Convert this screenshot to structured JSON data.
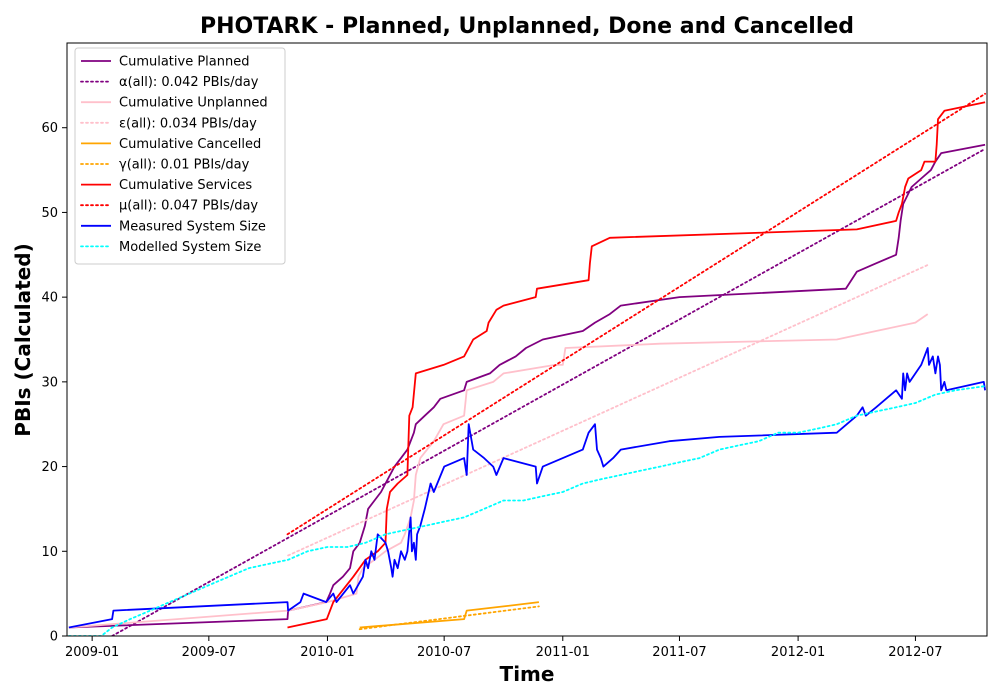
{
  "chart_data": {
    "type": "line",
    "title": "PHOTARK - Planned, Unplanned, Done  and Cancelled",
    "xlabel": "Time",
    "ylabel": "PBIs (Calculated)",
    "xlim": [
      "2008-11-23",
      "2012-10-20"
    ],
    "ylim": [
      0,
      70
    ],
    "x_ticks": [
      "2009-01",
      "2009-07",
      "2010-01",
      "2010-07",
      "2011-01",
      "2011-07",
      "2012-01",
      "2012-07"
    ],
    "y_ticks": [
      0,
      10,
      20,
      30,
      40,
      50,
      60
    ],
    "grid": false,
    "legend_position": "top-left",
    "series": [
      {
        "name": "Cumulative Planned",
        "color": "#800080",
        "style": "solid",
        "points": [
          [
            "2008-11-26",
            1
          ],
          [
            "2009-10-31",
            2
          ],
          [
            "2009-11-01",
            3
          ],
          [
            "2009-12-30",
            4
          ],
          [
            "2010-01-05",
            5
          ],
          [
            "2010-01-10",
            6
          ],
          [
            "2010-01-25",
            7
          ],
          [
            "2010-02-05",
            8
          ],
          [
            "2010-02-10",
            10
          ],
          [
            "2010-02-20",
            11
          ],
          [
            "2010-02-28",
            13
          ],
          [
            "2010-03-05",
            15
          ],
          [
            "2010-03-15",
            16
          ],
          [
            "2010-03-25",
            17
          ],
          [
            "2010-04-01",
            18
          ],
          [
            "2010-04-15",
            20
          ],
          [
            "2010-04-25",
            21
          ],
          [
            "2010-05-05",
            22
          ],
          [
            "2010-05-15",
            24
          ],
          [
            "2010-05-18",
            25
          ],
          [
            "2010-06-01",
            26
          ],
          [
            "2010-06-15",
            27
          ],
          [
            "2010-06-25",
            28
          ],
          [
            "2010-08-01",
            29
          ],
          [
            "2010-08-05",
            30
          ],
          [
            "2010-09-10",
            31
          ],
          [
            "2010-09-25",
            32
          ],
          [
            "2010-10-20",
            33
          ],
          [
            "2010-11-05",
            34
          ],
          [
            "2010-12-01",
            35
          ],
          [
            "2011-02-01",
            36
          ],
          [
            "2011-02-20",
            37
          ],
          [
            "2011-03-15",
            38
          ],
          [
            "2011-04-01",
            39
          ],
          [
            "2011-07-01",
            40
          ],
          [
            "2012-03-15",
            41
          ],
          [
            "2012-04-01",
            43
          ],
          [
            "2012-05-01",
            44
          ],
          [
            "2012-06-01",
            45
          ],
          [
            "2012-06-05",
            47
          ],
          [
            "2012-06-08",
            49
          ],
          [
            "2012-06-12",
            51
          ],
          [
            "2012-06-25",
            53
          ],
          [
            "2012-07-10",
            54
          ],
          [
            "2012-07-25",
            55
          ],
          [
            "2012-08-01",
            56
          ],
          [
            "2012-08-10",
            57
          ],
          [
            "2012-10-17",
            58
          ]
        ]
      },
      {
        "name": "α(all): 0.042 PBIs/day",
        "color": "#800080",
        "style": "dotted",
        "points": [
          [
            "2009-02-01",
            0
          ],
          [
            "2012-10-17",
            57.5
          ]
        ]
      },
      {
        "name": "Cumulative Unplanned",
        "color": "#ffc0cb",
        "style": "solid",
        "points": [
          [
            "2008-11-26",
            1
          ],
          [
            "2009-11-01",
            3
          ],
          [
            "2010-01-01",
            4
          ],
          [
            "2010-02-15",
            5
          ],
          [
            "2010-02-18",
            7
          ],
          [
            "2010-02-25",
            8
          ],
          [
            "2010-03-15",
            9
          ],
          [
            "2010-04-01",
            10
          ],
          [
            "2010-04-25",
            11
          ],
          [
            "2010-05-01",
            12
          ],
          [
            "2010-05-10",
            14
          ],
          [
            "2010-05-15",
            16
          ],
          [
            "2010-05-18",
            19
          ],
          [
            "2010-05-25",
            21
          ],
          [
            "2010-06-15",
            23
          ],
          [
            "2010-06-30",
            25
          ],
          [
            "2010-08-01",
            26
          ],
          [
            "2010-08-05",
            29
          ],
          [
            "2010-09-15",
            30
          ],
          [
            "2010-10-01",
            31
          ],
          [
            "2010-12-20",
            32
          ],
          [
            "2011-01-01",
            32
          ],
          [
            "2011-01-05",
            34
          ],
          [
            "2011-06-01",
            34.5
          ],
          [
            "2012-03-01",
            35
          ],
          [
            "2012-05-01",
            36
          ],
          [
            "2012-07-01",
            37
          ],
          [
            "2012-07-20",
            38
          ]
        ]
      },
      {
        "name": "ε(all): 0.034 PBIs/day",
        "color": "#ffc0cb",
        "style": "dotted",
        "points": [
          [
            "2009-11-01",
            9.5
          ],
          [
            "2012-07-20",
            43.8
          ]
        ]
      },
      {
        "name": "Cumulative Cancelled",
        "color": "#ffa500",
        "style": "solid",
        "points": [
          [
            "2010-02-20",
            1
          ],
          [
            "2010-08-01",
            2
          ],
          [
            "2010-08-05",
            3
          ],
          [
            "2010-10-01",
            3.5
          ],
          [
            "2010-11-25",
            4
          ]
        ]
      },
      {
        "name": "γ(all): 0.01 PBIs/day",
        "color": "#ffa500",
        "style": "dotted",
        "points": [
          [
            "2010-02-20",
            0.8
          ],
          [
            "2010-11-25",
            3.5
          ]
        ]
      },
      {
        "name": "Cumulative Services",
        "color": "#ff0000",
        "style": "solid",
        "points": [
          [
            "2009-10-31",
            1
          ],
          [
            "2009-12-31",
            2
          ],
          [
            "2010-01-10",
            4
          ],
          [
            "2010-02-10",
            7
          ],
          [
            "2010-03-01",
            9
          ],
          [
            "2010-03-20",
            10
          ],
          [
            "2010-04-01",
            11
          ],
          [
            "2010-04-03",
            15
          ],
          [
            "2010-04-08",
            17
          ],
          [
            "2010-04-20",
            18
          ],
          [
            "2010-05-05",
            19
          ],
          [
            "2010-05-08",
            26
          ],
          [
            "2010-05-13",
            27
          ],
          [
            "2010-05-18",
            31
          ],
          [
            "2010-06-30",
            32
          ],
          [
            "2010-08-01",
            33
          ],
          [
            "2010-08-15",
            35
          ],
          [
            "2010-09-05",
            36
          ],
          [
            "2010-09-08",
            37
          ],
          [
            "2010-09-20",
            38.5
          ],
          [
            "2010-10-01",
            39
          ],
          [
            "2010-11-20",
            40
          ],
          [
            "2010-11-22",
            41
          ],
          [
            "2011-02-10",
            42
          ],
          [
            "2011-02-12",
            44
          ],
          [
            "2011-02-15",
            46
          ],
          [
            "2011-03-15",
            47
          ],
          [
            "2012-04-01",
            48
          ],
          [
            "2012-06-01",
            49
          ],
          [
            "2012-06-05",
            50
          ],
          [
            "2012-06-10",
            51
          ],
          [
            "2012-06-15",
            53
          ],
          [
            "2012-06-20",
            54
          ],
          [
            "2012-07-10",
            55
          ],
          [
            "2012-07-15",
            56
          ],
          [
            "2012-08-01",
            56
          ],
          [
            "2012-08-03",
            58
          ],
          [
            "2012-08-05",
            61
          ],
          [
            "2012-08-15",
            62
          ],
          [
            "2012-10-17",
            63
          ]
        ]
      },
      {
        "name": "μ(all): 0.047 PBIs/day",
        "color": "#ff0000",
        "style": "dotted",
        "points": [
          [
            "2009-10-31",
            12
          ],
          [
            "2012-10-17",
            64
          ]
        ]
      },
      {
        "name": "Measured System Size",
        "color": "#0000ff",
        "style": "solid",
        "points": [
          [
            "2008-11-26",
            1
          ],
          [
            "2009-02-01",
            2
          ],
          [
            "2009-02-03",
            3
          ],
          [
            "2009-10-31",
            4
          ],
          [
            "2009-11-01",
            3
          ],
          [
            "2009-11-20",
            4
          ],
          [
            "2009-11-25",
            5
          ],
          [
            "2009-12-30",
            4
          ],
          [
            "2010-01-10",
            5
          ],
          [
            "2010-01-15",
            4
          ],
          [
            "2010-02-05",
            6
          ],
          [
            "2010-02-10",
            5
          ],
          [
            "2010-02-25",
            7
          ],
          [
            "2010-03-01",
            9
          ],
          [
            "2010-03-05",
            8
          ],
          [
            "2010-03-10",
            10
          ],
          [
            "2010-03-15",
            9
          ],
          [
            "2010-03-20",
            12
          ],
          [
            "2010-04-01",
            11
          ],
          [
            "2010-04-05",
            10
          ],
          [
            "2010-04-10",
            8
          ],
          [
            "2010-04-12",
            7
          ],
          [
            "2010-04-15",
            9
          ],
          [
            "2010-04-20",
            8
          ],
          [
            "2010-04-25",
            10
          ],
          [
            "2010-05-01",
            9
          ],
          [
            "2010-05-05",
            10
          ],
          [
            "2010-05-10",
            14
          ],
          [
            "2010-05-12",
            10
          ],
          [
            "2010-05-15",
            11
          ],
          [
            "2010-05-18",
            9
          ],
          [
            "2010-05-20",
            12
          ],
          [
            "2010-05-25",
            13
          ],
          [
            "2010-06-01",
            15
          ],
          [
            "2010-06-10",
            18
          ],
          [
            "2010-06-15",
            17
          ],
          [
            "2010-07-01",
            20
          ],
          [
            "2010-08-01",
            21
          ],
          [
            "2010-08-05",
            19
          ],
          [
            "2010-08-08",
            25
          ],
          [
            "2010-08-15",
            22
          ],
          [
            "2010-09-01",
            21
          ],
          [
            "2010-09-15",
            20
          ],
          [
            "2010-09-20",
            19
          ],
          [
            "2010-10-01",
            21
          ],
          [
            "2010-11-20",
            20
          ],
          [
            "2010-11-22",
            18
          ],
          [
            "2010-12-01",
            20
          ],
          [
            "2011-01-01",
            21
          ],
          [
            "2011-02-01",
            22
          ],
          [
            "2011-02-10",
            24
          ],
          [
            "2011-02-20",
            25
          ],
          [
            "2011-02-23",
            22
          ],
          [
            "2011-03-01",
            21
          ],
          [
            "2011-03-05",
            20
          ],
          [
            "2011-03-20",
            21
          ],
          [
            "2011-04-01",
            22
          ],
          [
            "2011-06-15",
            23
          ],
          [
            "2011-09-01",
            23.5
          ],
          [
            "2012-03-01",
            24
          ],
          [
            "2012-04-01",
            26
          ],
          [
            "2012-04-10",
            27
          ],
          [
            "2012-04-15",
            26
          ],
          [
            "2012-05-01",
            27
          ],
          [
            "2012-06-01",
            29
          ],
          [
            "2012-06-10",
            28
          ],
          [
            "2012-06-12",
            31
          ],
          [
            "2012-06-15",
            29
          ],
          [
            "2012-06-18",
            31
          ],
          [
            "2012-06-22",
            30
          ],
          [
            "2012-07-01",
            31
          ],
          [
            "2012-07-10",
            32
          ],
          [
            "2012-07-20",
            34
          ],
          [
            "2012-07-22",
            32
          ],
          [
            "2012-07-28",
            33
          ],
          [
            "2012-08-01",
            31
          ],
          [
            "2012-08-05",
            33
          ],
          [
            "2012-08-08",
            32
          ],
          [
            "2012-08-10",
            29
          ],
          [
            "2012-08-15",
            30
          ],
          [
            "2012-08-18",
            29
          ],
          [
            "2012-10-15",
            30
          ],
          [
            "2012-10-17",
            29
          ]
        ]
      },
      {
        "name": "Modelled System Size",
        "color": "#00ffff",
        "style": "dotted",
        "points": [
          [
            "2008-11-26",
            0
          ],
          [
            "2009-01-15",
            0
          ],
          [
            "2009-02-01",
            1
          ],
          [
            "2009-03-01",
            2
          ],
          [
            "2009-04-01",
            3
          ],
          [
            "2009-05-01",
            4
          ],
          [
            "2009-06-01",
            5
          ],
          [
            "2009-07-01",
            6
          ],
          [
            "2009-08-01",
            7
          ],
          [
            "2009-09-01",
            8
          ],
          [
            "2009-10-01",
            8.5
          ],
          [
            "2009-11-01",
            9
          ],
          [
            "2009-12-01",
            10
          ],
          [
            "2010-01-01",
            10.5
          ],
          [
            "2010-02-01",
            10.5
          ],
          [
            "2010-03-01",
            11
          ],
          [
            "2010-04-01",
            12
          ],
          [
            "2010-05-01",
            12.5
          ],
          [
            "2010-06-01",
            13
          ],
          [
            "2010-07-01",
            13.5
          ],
          [
            "2010-08-01",
            14
          ],
          [
            "2010-09-01",
            15
          ],
          [
            "2010-10-01",
            16
          ],
          [
            "2010-11-01",
            16
          ],
          [
            "2010-12-01",
            16.5
          ],
          [
            "2011-01-01",
            17
          ],
          [
            "2011-02-01",
            18
          ],
          [
            "2011-03-01",
            18.5
          ],
          [
            "2011-04-01",
            19
          ],
          [
            "2011-05-01",
            19.5
          ],
          [
            "2011-06-01",
            20
          ],
          [
            "2011-07-01",
            20.5
          ],
          [
            "2011-08-01",
            21
          ],
          [
            "2011-09-01",
            22
          ],
          [
            "2011-10-01",
            22.5
          ],
          [
            "2011-11-01",
            23
          ],
          [
            "2011-12-01",
            24
          ],
          [
            "2012-01-01",
            24
          ],
          [
            "2012-02-01",
            24.5
          ],
          [
            "2012-03-01",
            25
          ],
          [
            "2012-04-01",
            26
          ],
          [
            "2012-05-01",
            26.5
          ],
          [
            "2012-06-01",
            27
          ],
          [
            "2012-07-01",
            27.5
          ],
          [
            "2012-08-01",
            28.5
          ],
          [
            "2012-09-01",
            29
          ],
          [
            "2012-10-17",
            29.5
          ]
        ]
      }
    ]
  }
}
